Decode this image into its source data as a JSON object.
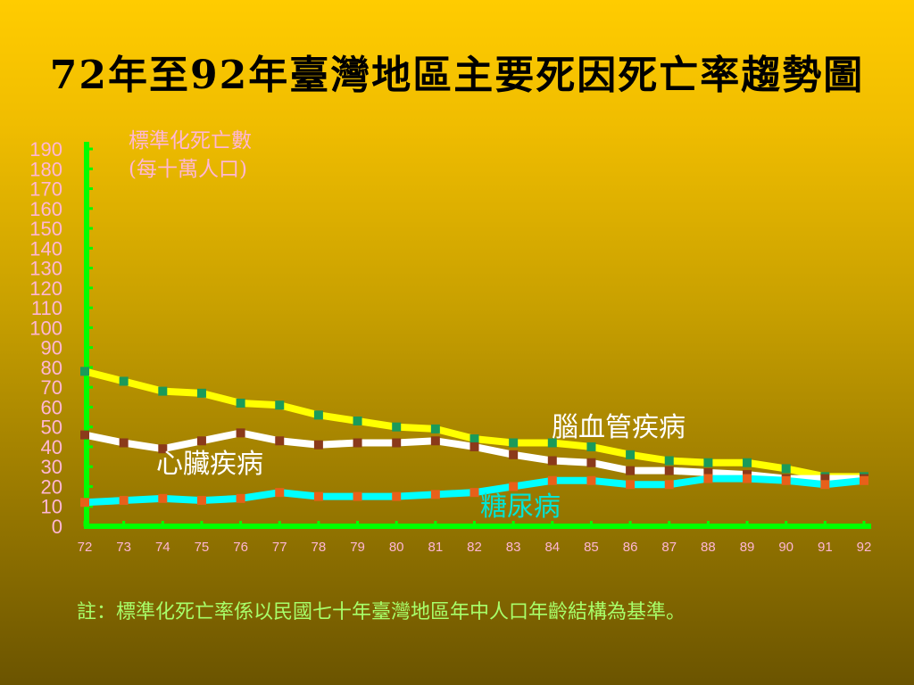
{
  "title": "72年至92年臺灣地區主要死因死亡率趨勢圖",
  "note": "註：標準化死亡率係以民國七十年臺灣地區年中人口年齡結構為基準。",
  "colors": {
    "axis": "#00ff00",
    "tick_text": "#ffb6d4",
    "note_text": "#a8ff6a",
    "label_text": "#ffffff"
  },
  "chart_data": {
    "type": "line",
    "ylabel_lines": [
      "標準化死亡數",
      "(每十萬人口)"
    ],
    "x": [
      "72",
      "73",
      "74",
      "75",
      "76",
      "77",
      "78",
      "79",
      "80",
      "81",
      "82",
      "83",
      "84",
      "85",
      "86",
      "87",
      "88",
      "89",
      "90",
      "91",
      "92"
    ],
    "ylim": [
      0,
      190
    ],
    "yticks": [
      0,
      10,
      20,
      30,
      40,
      50,
      60,
      70,
      80,
      90,
      100,
      110,
      120,
      130,
      140,
      150,
      160,
      170,
      180,
      190
    ],
    "series": [
      {
        "name": "腦血管疾病",
        "color": "#ffff00",
        "marker_color": "#1a9a5a",
        "values": [
          78,
          73,
          68,
          67,
          62,
          61,
          56,
          53,
          50,
          49,
          44,
          42,
          42,
          40,
          36,
          33,
          32,
          32,
          29,
          25,
          25
        ]
      },
      {
        "name": "心臟疾病",
        "color": "#ffffff",
        "marker_color": "#8b3a1a",
        "values": [
          46,
          42,
          39,
          43,
          47,
          43,
          41,
          42,
          42,
          43,
          40,
          36,
          33,
          32,
          28,
          28,
          27,
          26,
          24,
          24,
          24
        ]
      },
      {
        "name": "糖尿病",
        "color": "#00ffff",
        "marker_color": "#e8601a",
        "values": [
          12,
          13,
          14,
          13,
          14,
          17,
          15,
          15,
          15,
          16,
          17,
          20,
          23,
          23,
          21,
          21,
          24,
          24,
          23,
          21,
          23
        ]
      }
    ],
    "series_label_colors": [
      "#ffffff",
      "#ffffff",
      "#00e5d5"
    ],
    "grid": false,
    "legend": "inline labels"
  }
}
